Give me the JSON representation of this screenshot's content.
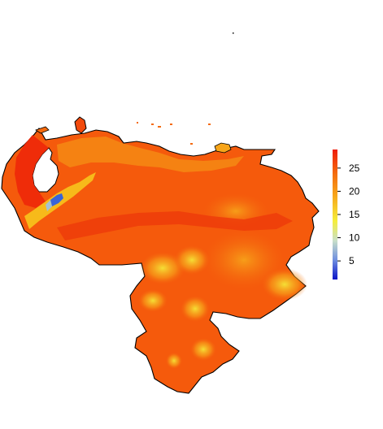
{
  "map": {
    "region": "Venezuela",
    "variable_units": "",
    "color_ramp": [
      "#0a14c8",
      "#9ac2e6",
      "#f5ee3a",
      "#f7a51a",
      "#f46a0e",
      "#ee1c0a"
    ]
  },
  "legend": {
    "min": 1,
    "max": 29,
    "ticks": [
      5,
      10,
      15,
      20,
      25
    ],
    "tick_labels": [
      "5",
      "10",
      "15",
      "20",
      "25"
    ]
  }
}
